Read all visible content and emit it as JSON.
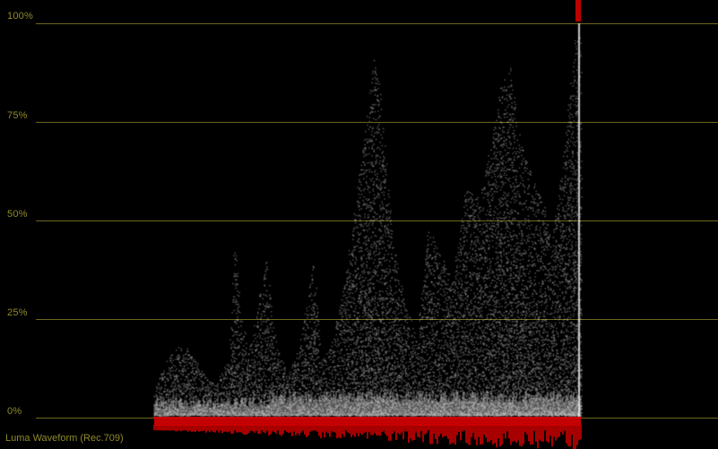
{
  "scope": {
    "title": "Luma Waveform (Rec.709)",
    "grid_color": "#8f8a2a",
    "trace_color": "#ffffff",
    "clip_color": "#d00000",
    "levels": [
      {
        "label": "100%",
        "value": 100
      },
      {
        "label": "75%",
        "value": 75
      },
      {
        "label": "50%",
        "value": 50
      },
      {
        "label": "25%",
        "value": 25
      },
      {
        "label": "0%",
        "value": 0
      }
    ]
  }
}
